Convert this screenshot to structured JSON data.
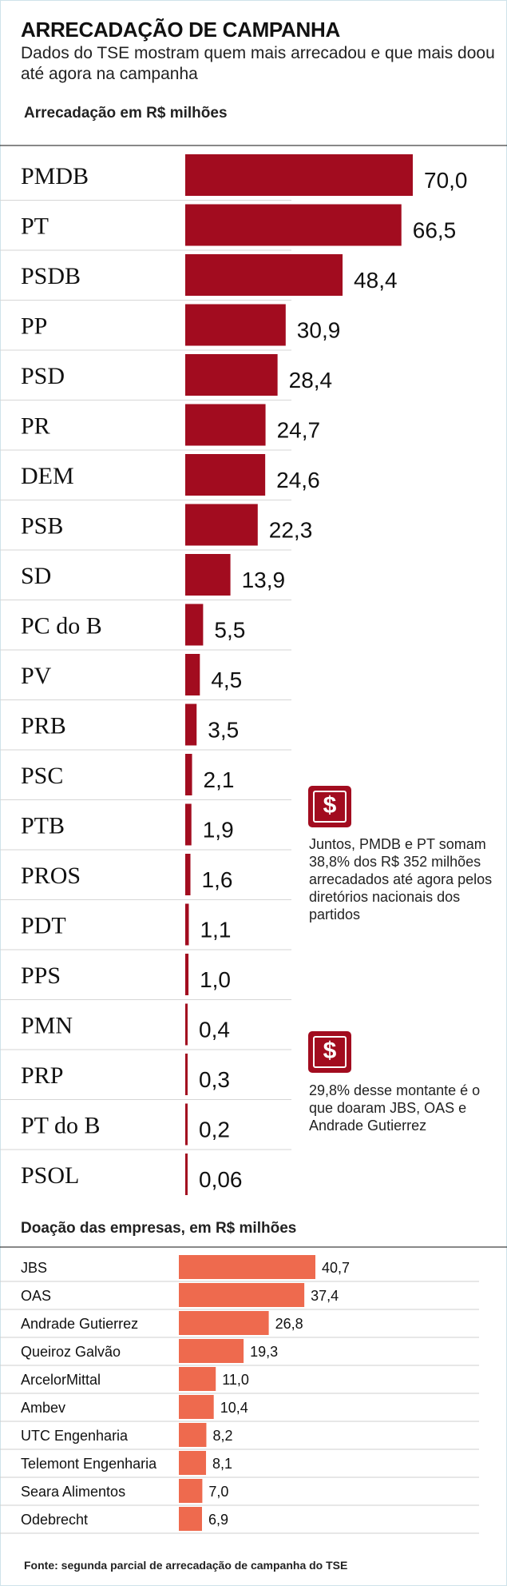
{
  "header": {
    "title": "ARRECADAÇÃO DE CAMPANHA",
    "subtitle": "Dados do TSE mostram quem mais arrecadou e que mais doou até agora na campanha"
  },
  "chart_data": [
    {
      "type": "bar",
      "orientation": "horizontal",
      "title": "Arrecadação em R$ milhões",
      "categories": [
        "PMDB",
        "PT",
        "PSDB",
        "PP",
        "PSD",
        "PR",
        "DEM",
        "PSB",
        "SD",
        "PC do B",
        "PV",
        "PRB",
        "PSC",
        "PTB",
        "PROS",
        "PDT",
        "PPS",
        "PMN",
        "PRP",
        "PT do B",
        "PSOL"
      ],
      "values": [
        70.0,
        66.5,
        48.4,
        30.9,
        28.4,
        24.7,
        24.6,
        22.3,
        13.9,
        5.5,
        4.5,
        3.5,
        2.1,
        1.9,
        1.6,
        1.1,
        1.0,
        0.4,
        0.3,
        0.2,
        0.06
      ],
      "labels": [
        "70,0",
        "66,5",
        "48,4",
        "30,9",
        "28,4",
        "24,7",
        "24,6",
        "22,3",
        "13,9",
        "5,5",
        "4,5",
        "3,5",
        "2,1",
        "1,9",
        "1,6",
        "1,1",
        "1,0",
        "0,4",
        "0,3",
        "0,2",
        "0,06"
      ],
      "color": "#a20c1f",
      "xlim": [
        0,
        70
      ]
    },
    {
      "type": "bar",
      "orientation": "horizontal",
      "title": "Doação das empresas, em R$ milhões",
      "categories": [
        "JBS",
        "OAS",
        "Andrade Gutierrez",
        "Queiroz Galvão",
        "ArcelorMittal",
        "Ambev",
        "UTC Engenharia",
        "Telemont Engenharia",
        "Seara Alimentos",
        "Odebrecht"
      ],
      "values": [
        40.7,
        37.4,
        26.8,
        19.3,
        11.0,
        10.4,
        8.2,
        8.1,
        7.0,
        6.9
      ],
      "labels": [
        "40,7",
        "37,4",
        "26,8",
        "19,3",
        "11,0",
        "10,4",
        "8,2",
        "8,1",
        "7,0",
        "6,9"
      ],
      "color": "#ee6a4e",
      "xlim": [
        0,
        40.7
      ]
    }
  ],
  "notes": [
    {
      "icon": "money-icon",
      "glyph": "$",
      "text": "Juntos, PMDB e PT somam 38,8% dos R$ 352 milhões arrecadados até agora pelos diretórios nacionais dos partidos"
    },
    {
      "icon": "money-icon",
      "glyph": "$",
      "text": "29,8% desse montante é o que doaram JBS, OAS e Andrade Gutierrez"
    }
  ],
  "footer": {
    "source": "Fonte: segunda parcial de arrecadação de campanha do TSE"
  }
}
